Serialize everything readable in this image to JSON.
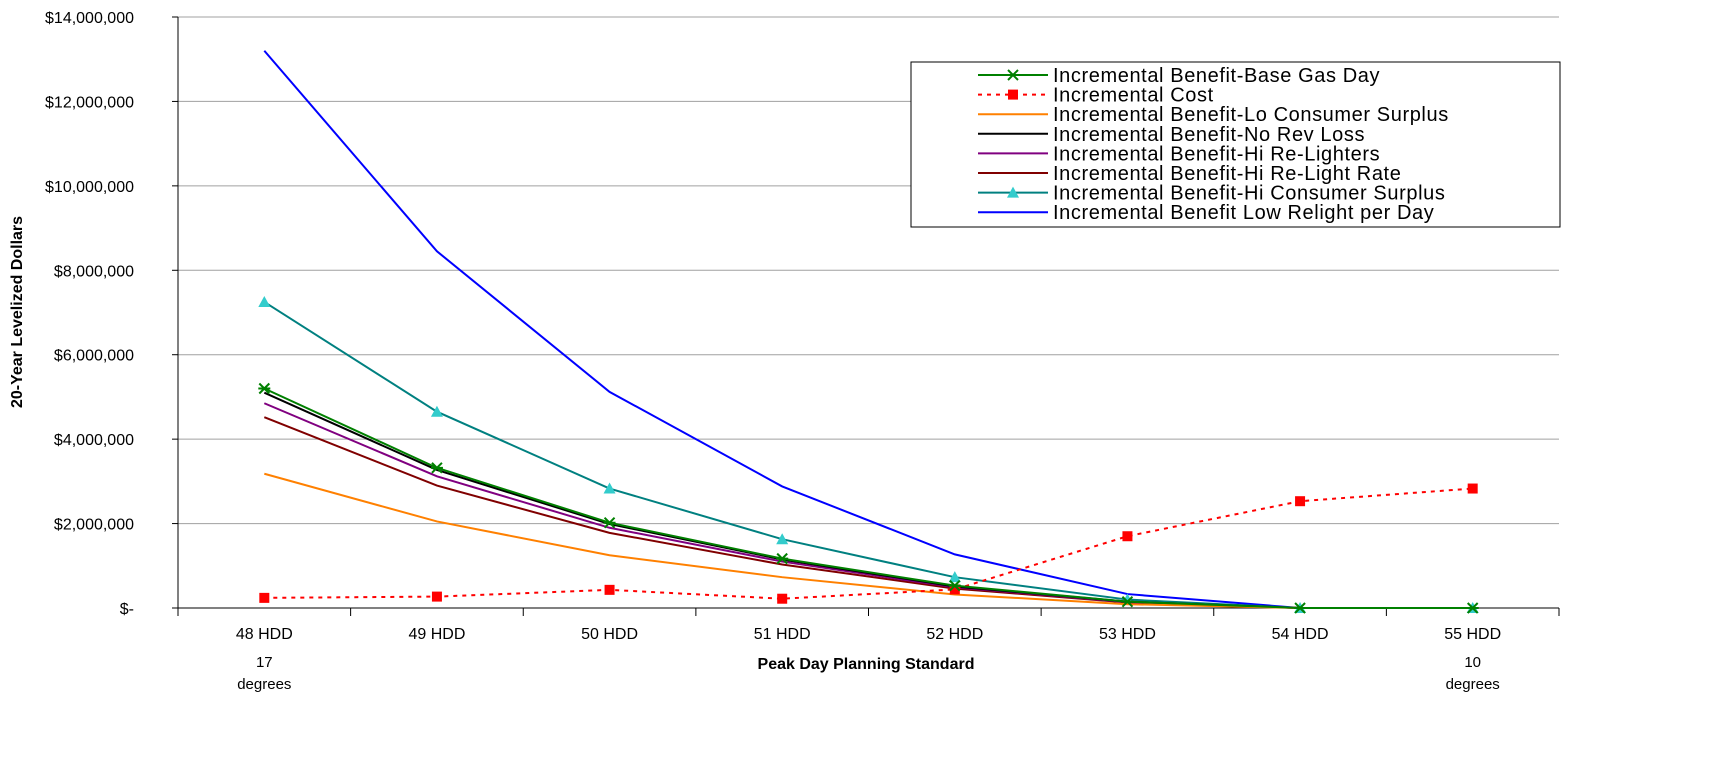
{
  "chart_data": {
    "type": "line",
    "title": "",
    "xlabel": "Peak Day Planning Standard",
    "ylabel": "20-Year Levelized Dollars",
    "categories": [
      "48 HDD",
      "49 HDD",
      "50 HDD",
      "51 HDD",
      "52 HDD",
      "53 HDD",
      "54 HDD",
      "55 HDD"
    ],
    "y_tick_labels": [
      "$-",
      "$2,000,000",
      "$4,000,000",
      "$6,000,000",
      "$8,000,000",
      "$10,000,000",
      "$12,000,000",
      "$14,000,000"
    ],
    "ylim": [
      0,
      14000000
    ],
    "grid": "horizontal",
    "legend_position": "top-right",
    "annotations": [
      {
        "category": "48 HDD",
        "line1": "17",
        "line2": "degrees"
      },
      {
        "category": "55 HDD",
        "line1": "10",
        "line2": "degrees"
      }
    ],
    "series": [
      {
        "name": "Incremental Benefit-Base Gas Day",
        "color": "#008000",
        "dash": "solid",
        "marker": "star",
        "values": [
          5200000,
          3320000,
          2020000,
          1170000,
          530000,
          150000,
          0,
          0
        ]
      },
      {
        "name": "Incremental Cost",
        "color": "#ff0000",
        "dash": "dotted",
        "marker": "square",
        "values": [
          240000,
          270000,
          430000,
          220000,
          440000,
          1700000,
          2530000,
          2830000
        ]
      },
      {
        "name": "Incremental Benefit-Lo Consumer Surplus",
        "color": "#ff8000",
        "dash": "solid",
        "marker": "none",
        "values": [
          3180000,
          2050000,
          1250000,
          730000,
          320000,
          90000,
          0,
          0
        ]
      },
      {
        "name": "Incremental Benefit-No Rev Loss",
        "color": "#000000",
        "dash": "solid",
        "marker": "none",
        "values": [
          5100000,
          3270000,
          1990000,
          1150000,
          510000,
          150000,
          0,
          0
        ]
      },
      {
        "name": "Incremental Benefit-Hi Re-Lighters",
        "color": "#800080",
        "dash": "solid",
        "marker": "none",
        "values": [
          4850000,
          3120000,
          1900000,
          1100000,
          490000,
          140000,
          0,
          0
        ]
      },
      {
        "name": "Incremental Benefit-Hi Re-Light Rate",
        "color": "#800000",
        "dash": "solid",
        "marker": "none",
        "values": [
          4520000,
          2900000,
          1780000,
          1030000,
          460000,
          130000,
          0,
          0
        ]
      },
      {
        "name": "Incremental Benefit-Hi Consumer Surplus",
        "color": "#008080",
        "dash": "solid",
        "marker": "triangle",
        "marker_color": "#33cccc",
        "values": [
          7250000,
          4650000,
          2830000,
          1630000,
          730000,
          200000,
          0,
          0
        ]
      },
      {
        "name": "Incremental Benefit Low Relight per Day",
        "color": "#0000ff",
        "dash": "solid",
        "marker": "none",
        "values": [
          13200000,
          8450000,
          5120000,
          2880000,
          1270000,
          330000,
          0,
          0
        ]
      }
    ]
  }
}
